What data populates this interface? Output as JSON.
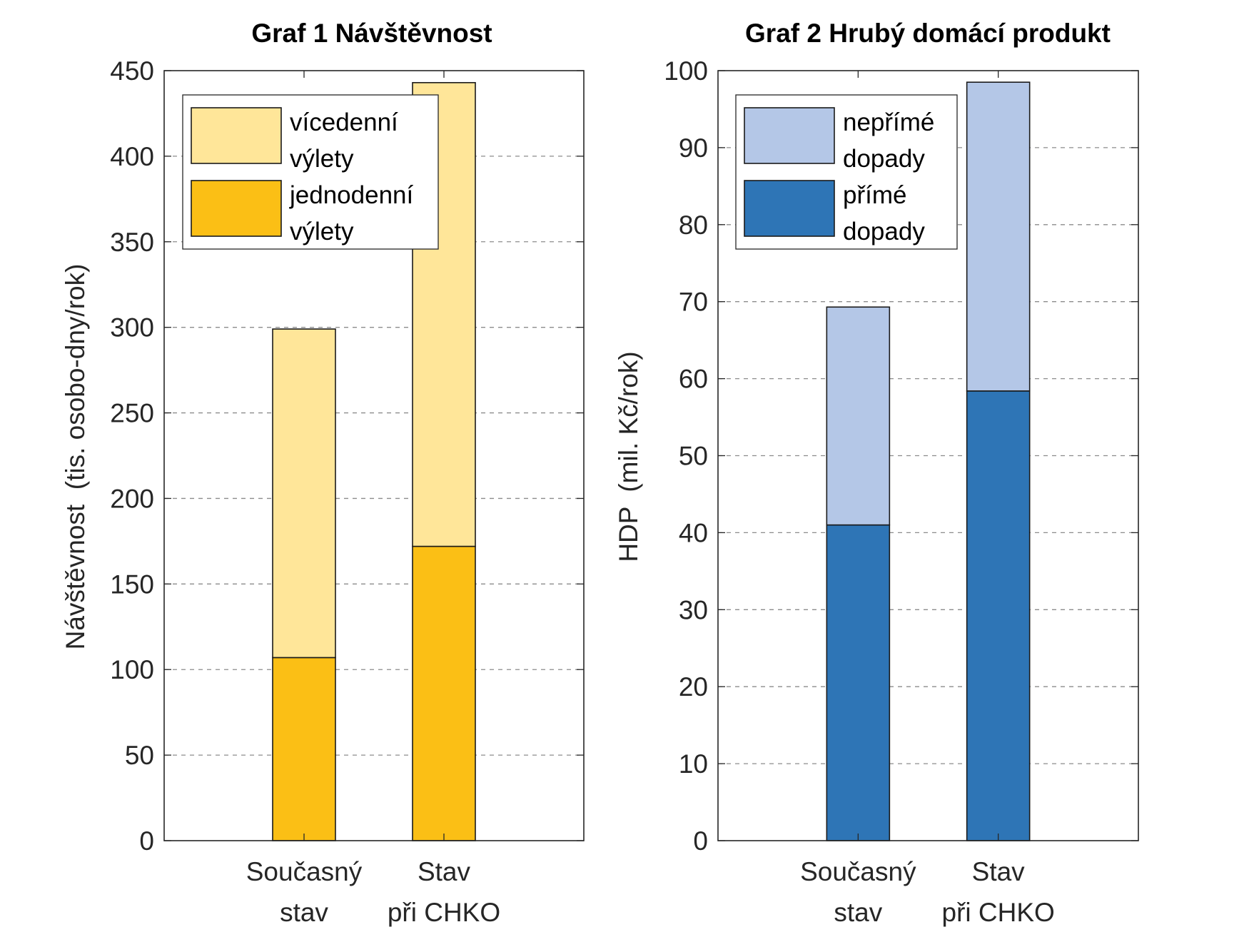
{
  "chart_data": [
    {
      "type": "bar",
      "stacked": true,
      "title": "Graf 1 Návštěvnost",
      "ylabel": "Návštěvnost  (tis. osobo-dny/rok)",
      "xlabel": "",
      "ylim": [
        0,
        450
      ],
      "yticks": [
        0,
        50,
        100,
        150,
        200,
        250,
        300,
        350,
        400,
        450
      ],
      "grid": "horizontal dashed",
      "legend_position": "top-left",
      "categories": [
        [
          "Současný",
          "stav"
        ],
        [
          "Stav",
          "při CHKO"
        ]
      ],
      "series": [
        {
          "name": [
            "jednodenní",
            "výlety"
          ],
          "values": [
            107,
            172
          ],
          "color": "#FBBF15"
        },
        {
          "name": [
            "vícedenní",
            "výlety"
          ],
          "values": [
            192,
            271
          ],
          "color": "#FFE699"
        }
      ],
      "legend_order": [
        1,
        0
      ]
    },
    {
      "type": "bar",
      "stacked": true,
      "title": "Graf 2 Hrubý domácí produkt",
      "ylabel": "HDP  (mil. Kč/rok)",
      "xlabel": "",
      "ylim": [
        0,
        100
      ],
      "yticks": [
        0,
        10,
        20,
        30,
        40,
        50,
        60,
        70,
        80,
        90,
        100
      ],
      "grid": "horizontal dashed",
      "legend_position": "top-left",
      "categories": [
        [
          "Současný",
          "stav"
        ],
        [
          "Stav",
          "při CHKO"
        ]
      ],
      "series": [
        {
          "name": [
            "přímé",
            "dopady"
          ],
          "values": [
            41,
            58.4
          ],
          "color": "#2E75B6"
        },
        {
          "name": [
            "nepřímé",
            "dopady"
          ],
          "values": [
            28.3,
            40.1
          ],
          "color": "#B4C7E7"
        }
      ],
      "legend_order": [
        1,
        0
      ]
    }
  ]
}
